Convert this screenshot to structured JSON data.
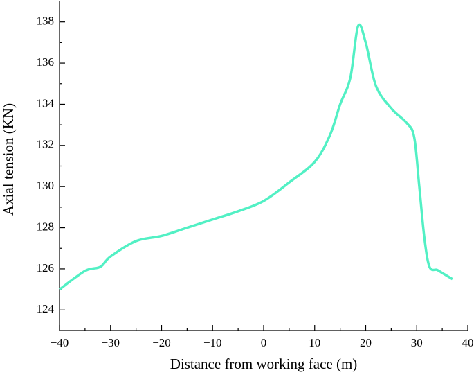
{
  "chart_data": {
    "type": "line",
    "x_label": "Distance from working face (m)",
    "y_label": "Axial tension (KN)",
    "x": [
      -40,
      -35,
      -32,
      -30,
      -25,
      -20,
      -15,
      -10,
      -5,
      0,
      5,
      10,
      13,
      15,
      17,
      18.5,
      20,
      22,
      25,
      28,
      29.5,
      30.5,
      31.5,
      32.5,
      34,
      35,
      37
    ],
    "series": [
      {
        "color": "#52f0c4",
        "values": [
          125.0,
          125.9,
          126.1,
          126.6,
          127.35,
          127.6,
          128.0,
          128.4,
          128.8,
          129.3,
          130.2,
          131.2,
          132.5,
          134.0,
          135.3,
          137.8,
          137.0,
          134.9,
          133.8,
          133.1,
          132.4,
          130.0,
          127.5,
          126.1,
          125.95,
          125.8,
          125.5
        ]
      }
    ],
    "xlim": [
      -40,
      40
    ],
    "ylim": [
      123,
      139
    ],
    "xticks": [
      {
        "value": -40,
        "label": "−40"
      },
      {
        "value": -30,
        "label": "−30"
      },
      {
        "value": -20,
        "label": "−20"
      },
      {
        "value": -10,
        "label": "−10"
      },
      0,
      10,
      20,
      30,
      40
    ],
    "yticks": [
      124,
      126,
      128,
      130,
      132,
      134,
      136,
      138
    ],
    "xminorticks": [
      -35,
      -25,
      -15,
      -5,
      5,
      15,
      25,
      35
    ],
    "yminorticks": [
      125,
      127,
      129,
      131,
      133,
      135,
      137
    ]
  }
}
